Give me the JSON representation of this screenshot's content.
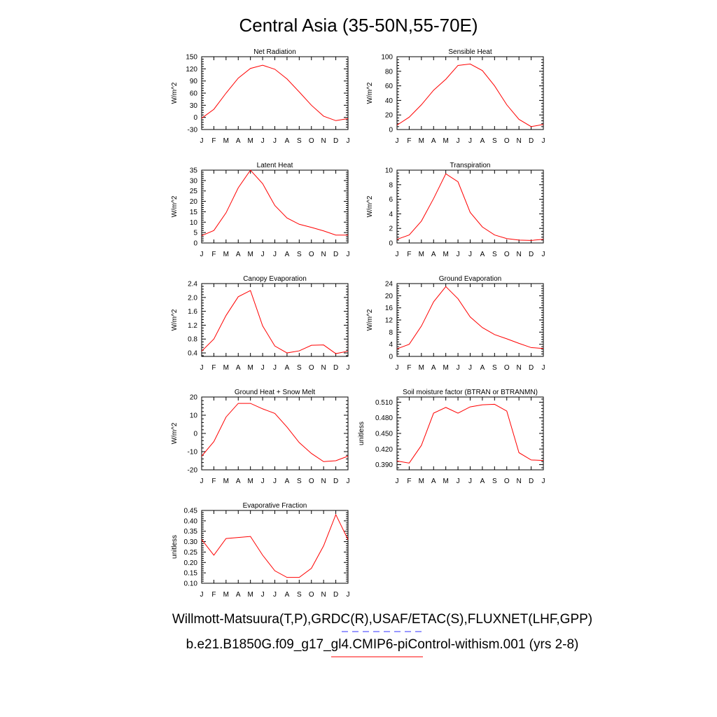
{
  "title": "Central Asia (35-50N,55-70E)",
  "footer": {
    "line1": "Willmott-Matsuura(T,P),GRDC(R),USAF/ETAC(S),FLUXNET(LHF,GPP)",
    "line2": "b.e21.B1850G.f09_g17_gl4.CMIP6-piControl-withism.001 (yrs 2-8)",
    "obs_color": "#3333ff",
    "model_color": "#ff0000"
  },
  "chart_data": [
    {
      "type": "line",
      "title": "Net Radiation",
      "ylabel": "W/m^2",
      "categories": [
        "J",
        "F",
        "M",
        "A",
        "M",
        "J",
        "J",
        "A",
        "S",
        "O",
        "N",
        "D",
        "J"
      ],
      "ylim": [
        -30,
        150
      ],
      "yticks": [
        -30,
        0,
        30,
        60,
        90,
        120,
        150
      ],
      "ytick_labels": [
        "-30",
        "0",
        "30",
        "60",
        "90",
        "120",
        "150"
      ],
      "series": [
        {
          "color": "#ff0000",
          "values": [
            -2,
            20,
            60,
            97,
            121,
            129,
            119,
            95,
            63,
            30,
            3,
            -8,
            -3
          ]
        }
      ]
    },
    {
      "type": "line",
      "title": "Sensible Heat",
      "ylabel": "W/m^2",
      "categories": [
        "J",
        "F",
        "M",
        "A",
        "M",
        "J",
        "J",
        "A",
        "S",
        "O",
        "N",
        "D",
        "J"
      ],
      "ylim": [
        0,
        100
      ],
      "yticks": [
        0,
        20,
        40,
        60,
        80,
        100
      ],
      "ytick_labels": [
        "0",
        "20",
        "40",
        "60",
        "80",
        "100"
      ],
      "series": [
        {
          "color": "#ff0000",
          "values": [
            6,
            17,
            34,
            54,
            69,
            88,
            90,
            81,
            60,
            34,
            14,
            4,
            7
          ]
        }
      ]
    },
    {
      "type": "line",
      "title": "Latent Heat",
      "ylabel": "W/m^2",
      "categories": [
        "J",
        "F",
        "M",
        "A",
        "M",
        "J",
        "J",
        "A",
        "S",
        "O",
        "N",
        "D",
        "J"
      ],
      "ylim": [
        0,
        35
      ],
      "yticks": [
        0,
        5,
        10,
        15,
        20,
        25,
        30,
        35
      ],
      "ytick_labels": [
        "0",
        "5",
        "10",
        "15",
        "20",
        "25",
        "30",
        "35"
      ],
      "series": [
        {
          "color": "#ff0000",
          "values": [
            3.5,
            6,
            14.5,
            26.5,
            35,
            28.5,
            18,
            12,
            9,
            7.5,
            5.8,
            3.8,
            3.8
          ]
        }
      ]
    },
    {
      "type": "line",
      "title": "Transpiration",
      "ylabel": "W/m^2",
      "categories": [
        "J",
        "F",
        "M",
        "A",
        "M",
        "J",
        "J",
        "A",
        "S",
        "O",
        "N",
        "D",
        "J"
      ],
      "ylim": [
        0,
        10
      ],
      "yticks": [
        0,
        2,
        4,
        6,
        8,
        10
      ],
      "ytick_labels": [
        "0",
        "2",
        "4",
        "6",
        "8",
        "10"
      ],
      "series": [
        {
          "color": "#ff0000",
          "values": [
            0.5,
            1.1,
            3,
            6.1,
            9.5,
            8.4,
            4.2,
            2.2,
            1.1,
            0.6,
            0.4,
            0.35,
            0.5
          ]
        }
      ]
    },
    {
      "type": "line",
      "title": "Canopy Evaporation",
      "ylabel": "W/m^2",
      "categories": [
        "J",
        "F",
        "M",
        "A",
        "M",
        "J",
        "J",
        "A",
        "S",
        "O",
        "N",
        "D",
        "J"
      ],
      "ylim": [
        0.3,
        2.4
      ],
      "yticks": [
        0.4,
        0.8,
        1.2,
        1.6,
        2.0,
        2.4
      ],
      "ytick_labels": [
        "0.4",
        "0.8",
        "1.2",
        "1.6",
        "2.0",
        "2.4"
      ],
      "series": [
        {
          "color": "#ff0000",
          "values": [
            0.45,
            0.8,
            1.48,
            2.02,
            2.2,
            1.18,
            0.6,
            0.4,
            0.46,
            0.62,
            0.63,
            0.38,
            0.45
          ]
        }
      ]
    },
    {
      "type": "line",
      "title": "Ground Evaporation",
      "ylabel": "W/m^2",
      "categories": [
        "J",
        "F",
        "M",
        "A",
        "M",
        "J",
        "J",
        "A",
        "S",
        "O",
        "N",
        "D",
        "J"
      ],
      "ylim": [
        0,
        24
      ],
      "yticks": [
        0,
        4,
        8,
        12,
        16,
        20,
        24
      ],
      "ytick_labels": [
        "0",
        "4",
        "8",
        "12",
        "16",
        "20",
        "24"
      ],
      "series": [
        {
          "color": "#ff0000",
          "values": [
            2.5,
            4,
            10,
            18,
            23,
            19,
            13,
            9.5,
            7.2,
            5.8,
            4.3,
            2.9,
            2.6
          ]
        }
      ]
    },
    {
      "type": "line",
      "title": "Ground Heat + Snow Melt",
      "ylabel": "W/m^2",
      "categories": [
        "J",
        "F",
        "M",
        "A",
        "M",
        "J",
        "J",
        "A",
        "S",
        "O",
        "N",
        "D",
        "J"
      ],
      "ylim": [
        -20,
        20
      ],
      "yticks": [
        -20,
        -10,
        0,
        10,
        20
      ],
      "ytick_labels": [
        "-20",
        "-10",
        "0",
        "10",
        "20"
      ],
      "series": [
        {
          "color": "#ff0000",
          "values": [
            -12.5,
            -4.5,
            9,
            16.5,
            16.5,
            13.5,
            11,
            3.5,
            -5,
            -11,
            -15.5,
            -15,
            -12.5
          ]
        }
      ]
    },
    {
      "type": "line",
      "title": "Soil moisture factor (BTRAN or BTRANMN)",
      "ylabel": "unitless",
      "categories": [
        "J",
        "F",
        "M",
        "A",
        "M",
        "J",
        "J",
        "A",
        "S",
        "O",
        "N",
        "D",
        "J"
      ],
      "ylim": [
        0.38,
        0.52
      ],
      "yticks": [
        0.39,
        0.42,
        0.45,
        0.48,
        0.51
      ],
      "ytick_labels": [
        "0.390",
        "0.420",
        "0.450",
        "0.480",
        "0.510"
      ],
      "series": [
        {
          "color": "#ff0000",
          "values": [
            0.397,
            0.393,
            0.427,
            0.489,
            0.5,
            0.489,
            0.501,
            0.505,
            0.506,
            0.493,
            0.413,
            0.399,
            0.398
          ]
        }
      ]
    },
    {
      "type": "line",
      "title": "Evaporative Fraction",
      "ylabel": "unitless",
      "categories": [
        "J",
        "F",
        "M",
        "A",
        "M",
        "J",
        "J",
        "A",
        "S",
        "O",
        "N",
        "D",
        "J"
      ],
      "ylim": [
        0.1,
        0.45
      ],
      "yticks": [
        0.1,
        0.15,
        0.2,
        0.25,
        0.3,
        0.35,
        0.4,
        0.45
      ],
      "ytick_labels": [
        "0.10",
        "0.15",
        "0.20",
        "0.25",
        "0.30",
        "0.35",
        "0.40",
        "0.45"
      ],
      "series": [
        {
          "color": "#ff0000",
          "values": [
            0.31,
            0.235,
            0.315,
            0.32,
            0.325,
            0.235,
            0.16,
            0.128,
            0.128,
            0.172,
            0.28,
            0.43,
            0.31
          ]
        }
      ]
    }
  ]
}
